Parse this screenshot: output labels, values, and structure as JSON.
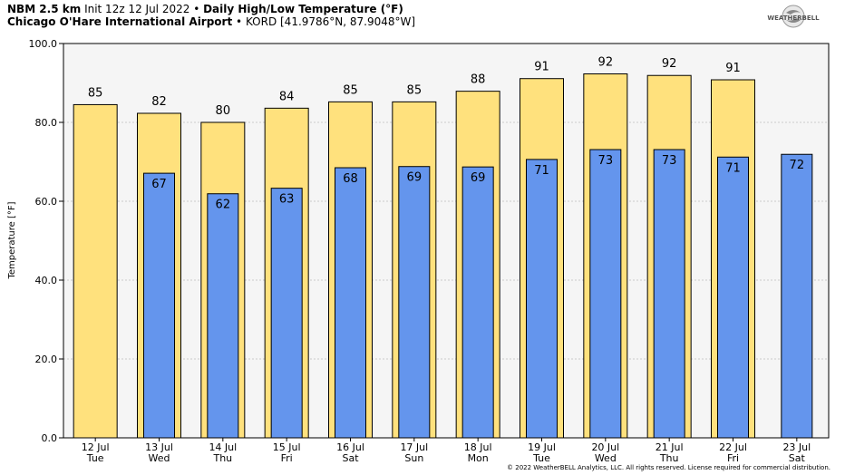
{
  "header": {
    "model": "NBM 2.5 km",
    "init": "Init 12z 12 Jul 2022",
    "bullet": "•",
    "title": "Daily High/Low Temperature (°F)",
    "station": "Chicago O'Hare International Airport",
    "station_code": "KORD [41.9786°N, 87.9048°W]"
  },
  "logo": {
    "text": "WEATHERBELL",
    "icon": "swirl-logo-icon"
  },
  "copyright": "© 2022 WeatherBELL Analytics, LLC. All rights reserved. License required for commercial distribution.",
  "colors": {
    "high": "#FFE17D",
    "low": "#6495ED",
    "plot_bg": "#F5F5F5",
    "grid": "#CCCCCC"
  },
  "chart_data": {
    "type": "bar",
    "ylabel": "Temperature [°F]",
    "ylim": [
      0,
      100
    ],
    "yticks": [
      "0.0",
      "20.0",
      "40.0",
      "60.0",
      "80.0",
      "100.0"
    ],
    "categories": [
      {
        "date": "12 Jul",
        "day": "Tue"
      },
      {
        "date": "13 Jul",
        "day": "Wed"
      },
      {
        "date": "14 Jul",
        "day": "Thu"
      },
      {
        "date": "15 Jul",
        "day": "Fri"
      },
      {
        "date": "16 Jul",
        "day": "Sat"
      },
      {
        "date": "17 Jul",
        "day": "Sun"
      },
      {
        "date": "18 Jul",
        "day": "Mon"
      },
      {
        "date": "19 Jul",
        "day": "Tue"
      },
      {
        "date": "20 Jul",
        "day": "Wed"
      },
      {
        "date": "21 Jul",
        "day": "Thu"
      },
      {
        "date": "22 Jul",
        "day": "Fri"
      },
      {
        "date": "23 Jul",
        "day": "Sat"
      }
    ],
    "series": [
      {
        "values": [
          84.5,
          82.3,
          80.0,
          83.6,
          85.2,
          85.2,
          87.9,
          91.1,
          92.3,
          91.9,
          90.8,
          null
        ],
        "labels": [
          "85",
          "82",
          "80",
          "84",
          "85",
          "85",
          "88",
          "91",
          "92",
          "92",
          "91",
          ""
        ]
      },
      {
        "values": [
          null,
          67.1,
          61.9,
          63.3,
          68.5,
          68.8,
          68.7,
          70.6,
          73.1,
          73.1,
          71.2,
          71.9
        ],
        "labels": [
          "",
          "67",
          "62",
          "63",
          "68",
          "69",
          "69",
          "71",
          "73",
          "73",
          "71",
          "72"
        ]
      }
    ]
  }
}
